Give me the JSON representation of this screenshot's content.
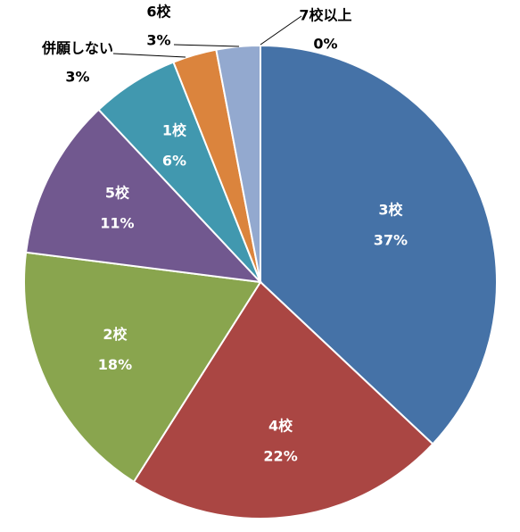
{
  "chart_data": {
    "type": "pie",
    "categories": [
      "3校",
      "4校",
      "2校",
      "5校",
      "1校",
      "併願しない",
      "6校",
      "7校以上"
    ],
    "values": [
      37,
      22,
      18,
      11,
      6,
      3,
      3,
      0
    ],
    "value_labels": [
      "37%",
      "22%",
      "18%",
      "11%",
      "6%",
      "3%",
      "3%",
      "0%"
    ],
    "colors": [
      "#4572a7",
      "#aa4643",
      "#89a54e",
      "#71588f",
      "#4198af",
      "#db843d",
      "#93a9cf",
      "#a47d7c"
    ]
  }
}
